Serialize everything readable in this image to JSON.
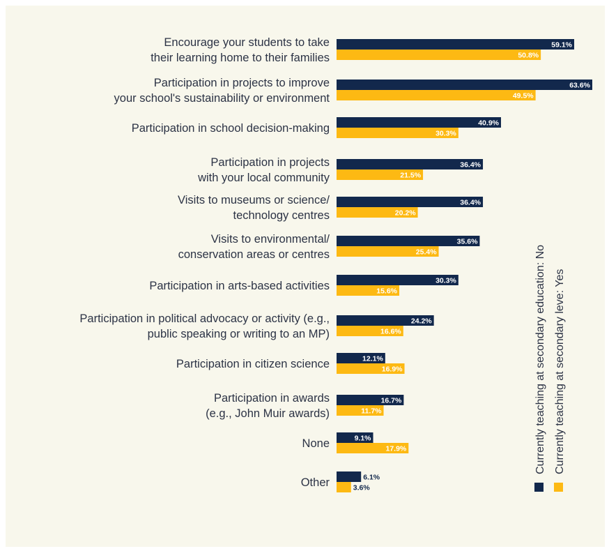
{
  "chart_data": {
    "type": "bar",
    "orientation": "horizontal",
    "categories": [
      [
        "Encourage your students to take",
        "their learning home to their families"
      ],
      [
        "Participation in projects to improve",
        "your school's sustainability or environment"
      ],
      [
        "Participation in school decision-making"
      ],
      [
        "Participation in projects",
        "with your local community"
      ],
      [
        "Visits to museums or science/",
        "technology centres"
      ],
      [
        "Visits to environmental/",
        "conservation areas or centres"
      ],
      [
        "Participation in arts-based activities"
      ],
      [
        "Participation in political advocacy or activity (e.g.,",
        "public speaking or writing to an MP)"
      ],
      [
        "Participation in citizen science"
      ],
      [
        "Participation in awards",
        "(e.g., John Muir awards)"
      ],
      [
        "None"
      ],
      [
        "Other"
      ]
    ],
    "series": [
      {
        "name": "Currently teaching at secondary education: No",
        "color": "#12284c",
        "values": [
          59.1,
          63.6,
          40.9,
          36.4,
          36.4,
          35.6,
          30.3,
          24.2,
          12.1,
          16.7,
          9.1,
          6.1
        ],
        "labels": [
          "59.1%",
          "63.6%",
          "40.9%",
          "36.4%",
          "36.4%",
          "35.6%",
          "30.3%",
          "24.2%",
          "12.1%",
          "16.7%",
          "9.1%",
          "6.1%"
        ]
      },
      {
        "name": "Currently teaching at secondary leve: Yes",
        "color": "#fdb913",
        "values": [
          50.8,
          49.5,
          30.3,
          21.5,
          20.2,
          25.4,
          15.6,
          16.6,
          16.9,
          11.7,
          17.9,
          3.6
        ],
        "labels": [
          "50.8%",
          "49.5%",
          "30.3%",
          "21.5%",
          "20.2%",
          "25.4%",
          "15.6%",
          "16.6%",
          "16.9%",
          "11.7%",
          "17.9%",
          "3.6%"
        ]
      }
    ],
    "xlim": [
      0,
      63.6
    ],
    "grid": false,
    "legend_position": "right, vertical"
  }
}
